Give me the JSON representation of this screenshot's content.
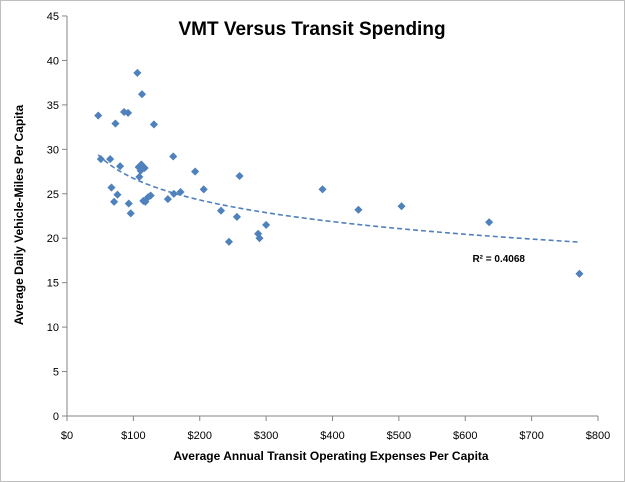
{
  "chart_data": {
    "type": "scatter",
    "title": "VMT Versus Transit Spending",
    "xlabel": "Average Annual Transit Operating Expenses Per Capita",
    "ylabel": "Average Daily Vehicle-Miles Per Capita",
    "xlim": [
      0,
      800
    ],
    "ylim": [
      0,
      45
    ],
    "x_ticks": [
      0,
      100,
      200,
      300,
      400,
      500,
      600,
      700,
      800
    ],
    "x_tick_labels": [
      "$0",
      "$100",
      "$200",
      "$300",
      "$400",
      "$500",
      "$600",
      "$700",
      "$800"
    ],
    "y_ticks": [
      0,
      5,
      10,
      15,
      20,
      25,
      30,
      35,
      40,
      45
    ],
    "y_tick_labels": [
      "0",
      "5",
      "10",
      "15",
      "20",
      "25",
      "30",
      "35",
      "40",
      "45"
    ],
    "grid": false,
    "legend": "none",
    "colors": {
      "marker": "#4f81bd",
      "trendline": "#4f81bd",
      "axis": "#868686"
    },
    "points": [
      {
        "x": 47,
        "y": 33.8
      },
      {
        "x": 51,
        "y": 28.9
      },
      {
        "x": 65,
        "y": 28.9
      },
      {
        "x": 67,
        "y": 25.7
      },
      {
        "x": 71,
        "y": 24.1
      },
      {
        "x": 73,
        "y": 32.9
      },
      {
        "x": 76,
        "y": 24.9
      },
      {
        "x": 80,
        "y": 28.1
      },
      {
        "x": 86,
        "y": 34.2
      },
      {
        "x": 92,
        "y": 34.1
      },
      {
        "x": 93,
        "y": 23.9
      },
      {
        "x": 96,
        "y": 22.8
      },
      {
        "x": 106,
        "y": 38.6
      },
      {
        "x": 108,
        "y": 28.0
      },
      {
        "x": 109,
        "y": 26.9
      },
      {
        "x": 111,
        "y": 27.6
      },
      {
        "x": 112,
        "y": 28.3
      },
      {
        "x": 113,
        "y": 36.2
      },
      {
        "x": 115,
        "y": 24.2
      },
      {
        "x": 117,
        "y": 27.9
      },
      {
        "x": 118,
        "y": 24.1
      },
      {
        "x": 122,
        "y": 24.6
      },
      {
        "x": 126,
        "y": 24.8
      },
      {
        "x": 131,
        "y": 32.8
      },
      {
        "x": 152,
        "y": 24.4
      },
      {
        "x": 160,
        "y": 29.2
      },
      {
        "x": 161,
        "y": 25.0
      },
      {
        "x": 171,
        "y": 25.2
      },
      {
        "x": 193,
        "y": 27.5
      },
      {
        "x": 206,
        "y": 25.5
      },
      {
        "x": 232,
        "y": 23.1
      },
      {
        "x": 244,
        "y": 19.6
      },
      {
        "x": 256,
        "y": 22.4
      },
      {
        "x": 260,
        "y": 27.0
      },
      {
        "x": 288,
        "y": 20.5
      },
      {
        "x": 290,
        "y": 20.0
      },
      {
        "x": 300,
        "y": 21.5
      },
      {
        "x": 385,
        "y": 25.5
      },
      {
        "x": 439,
        "y": 23.2
      },
      {
        "x": 504,
        "y": 23.6
      },
      {
        "x": 636,
        "y": 21.8
      },
      {
        "x": 772,
        "y": 16.0
      }
    ],
    "trendline": {
      "type": "logarithmic",
      "style": "dashed",
      "x_range": [
        47,
        772
      ],
      "a": 42.9,
      "b": -3.51
    },
    "annotations": [
      {
        "text": "R² = 0.4068",
        "x": 690,
        "y": 17.3
      }
    ]
  }
}
